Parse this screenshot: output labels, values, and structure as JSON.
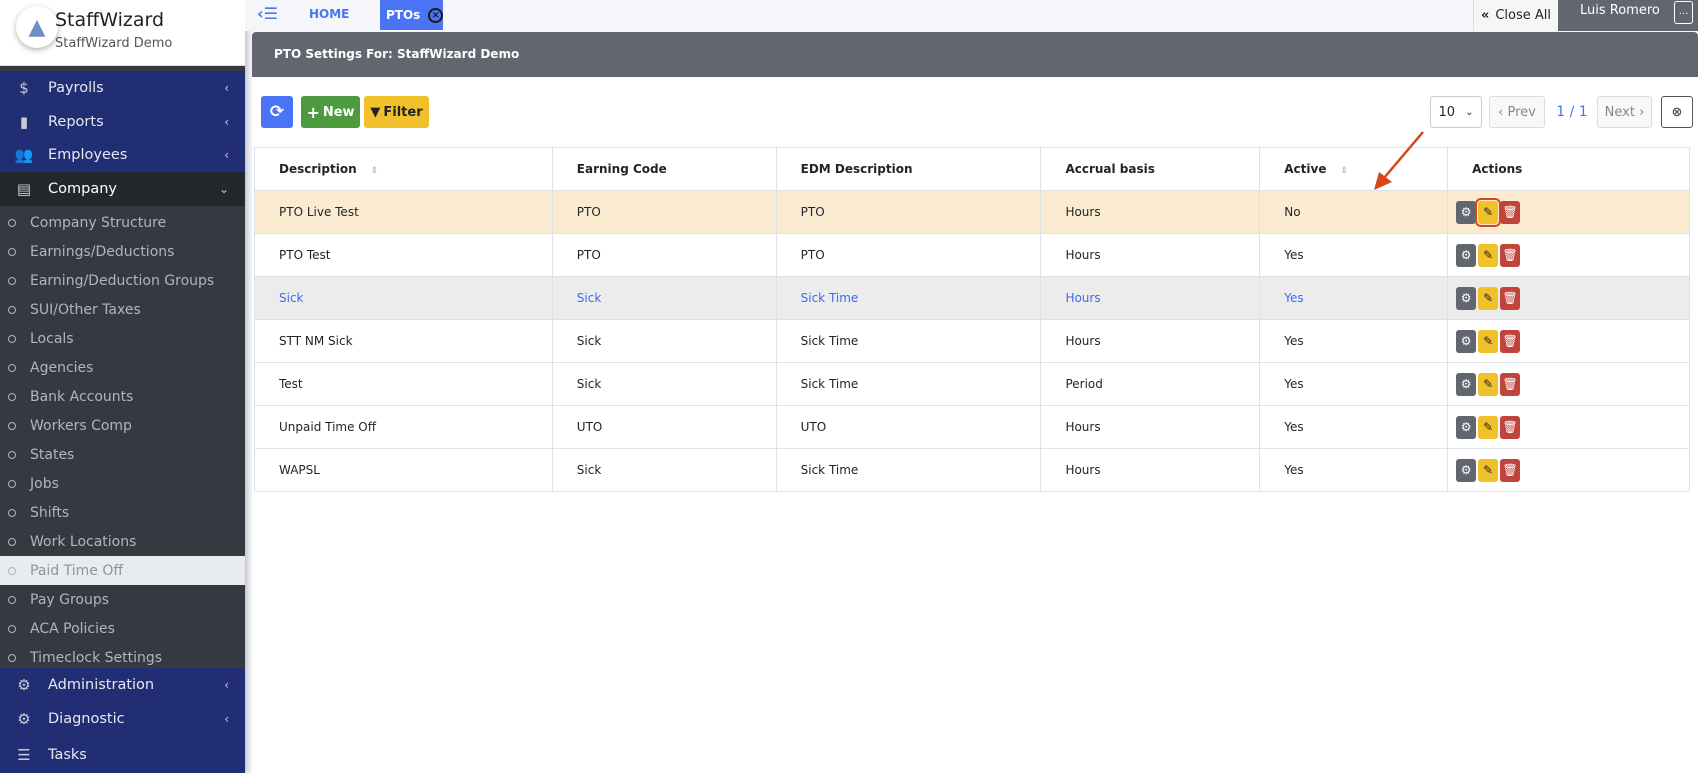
{
  "brand": {
    "name": "StaffWizard",
    "sub": "StaffWizard Demo"
  },
  "sidebar": {
    "main_top": [
      {
        "label": "Payrolls",
        "icon": "file-invoice-dollar-icon"
      },
      {
        "label": "Reports",
        "icon": "file-icon"
      },
      {
        "label": "Employees",
        "icon": "users-icon"
      },
      {
        "label": "Company",
        "icon": "book-icon"
      }
    ],
    "company_items": [
      "Company Structure",
      "Earnings/Deductions",
      "Earning/Deduction Groups",
      "SUI/Other Taxes",
      "Locals",
      "Agencies",
      "Bank Accounts",
      "Workers Comp",
      "States",
      "Jobs",
      "Shifts",
      "Work Locations",
      "Paid Time Off",
      "Pay Groups",
      "ACA Policies",
      "Timeclock Settings"
    ],
    "active_item": "Paid Time Off",
    "main_bottom": [
      {
        "label": "Administration",
        "icon": "gear-icon"
      },
      {
        "label": "Diagnostic",
        "icon": "gear-icon"
      },
      {
        "label": "Tasks",
        "icon": "tasks-icon"
      }
    ]
  },
  "topbar": {
    "home": "HOME",
    "tab": "PTOs",
    "close_all": "Close All",
    "user": "Luis Romero",
    "more": "..."
  },
  "page": {
    "title": "PTO Settings For: StaffWizard Demo"
  },
  "toolbar": {
    "new": "New",
    "filter": "Filter",
    "page_size": "10",
    "prev": "Prev",
    "page": "1 / 1",
    "next": "Next"
  },
  "table": {
    "headers": [
      "Description",
      "Earning Code",
      "EDM Description",
      "Accrual basis",
      "Active",
      "Actions"
    ],
    "rows": [
      [
        "PTO Live Test",
        "PTO",
        "PTO",
        "Hours",
        "No"
      ],
      [
        "PTO Test",
        "PTO",
        "PTO",
        "Hours",
        "Yes"
      ],
      [
        "Sick",
        "Sick",
        "Sick Time",
        "Hours",
        "Yes"
      ],
      [
        "STT NM Sick",
        "Sick",
        "Sick Time",
        "Hours",
        "Yes"
      ],
      [
        "Test",
        "Sick",
        "Sick Time",
        "Period",
        "Yes"
      ],
      [
        "Unpaid Time Off",
        "UTO",
        "UTO",
        "Hours",
        "Yes"
      ],
      [
        "WAPSL",
        "Sick",
        "Sick Time",
        "Hours",
        "Yes"
      ]
    ]
  },
  "colors": {
    "sidebar_blue": "#212e74",
    "primary": "#4a73f5",
    "success": "#4e9a3f",
    "warning": "#f0c12b",
    "danger": "#c0443c",
    "annotation": "#d9461a"
  }
}
